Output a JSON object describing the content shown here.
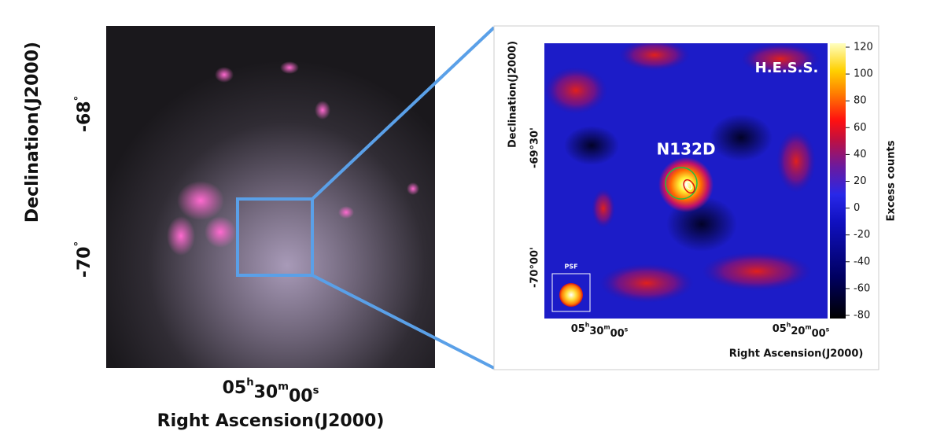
{
  "left_panel": {
    "y_label": "Declination(J2000)",
    "y_ticks": [
      "-68°",
      "-70°"
    ],
    "x_ticks": [
      "05h30m00s"
    ],
    "x_label": "Right Ascension(J2000)"
  },
  "right_panel": {
    "y_label": "Declination(J2000)",
    "y_ticks": [
      "-69°30'",
      "-70°00'"
    ],
    "x_ticks": [
      "05h30m00s",
      "05h20m00s"
    ],
    "x_label": "Right Ascension(J2000)",
    "telescope": "H.E.S.S.",
    "source": "N132D",
    "psf_label": "PSF",
    "colorbar": {
      "label": "Excess counts",
      "ticks": [
        120,
        100,
        80,
        60,
        40,
        20,
        0,
        -20,
        -40,
        -60,
        -80
      ]
    }
  }
}
